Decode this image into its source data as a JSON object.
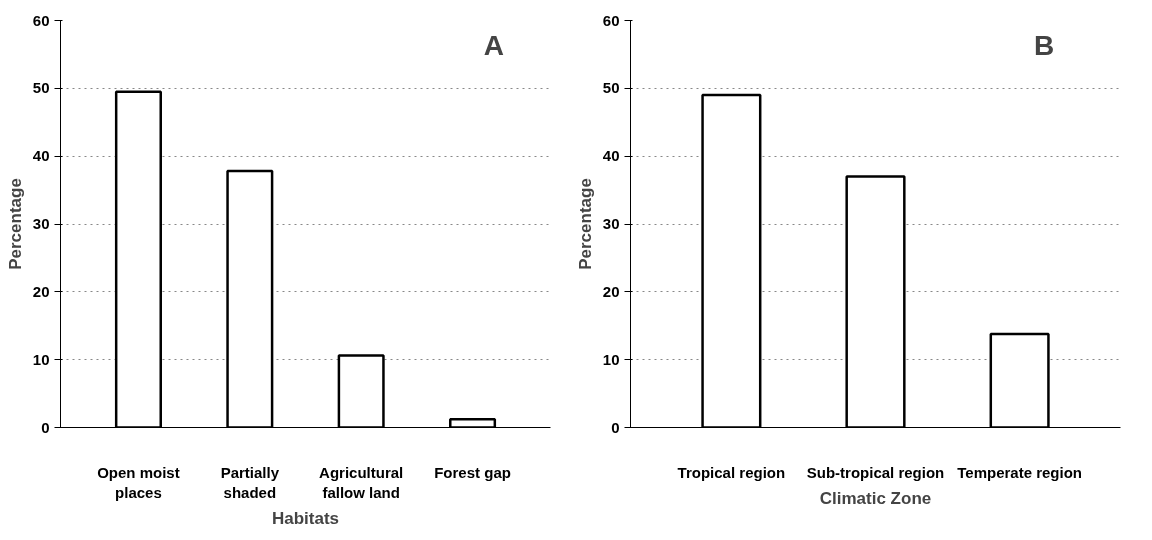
{
  "chart_data": [
    {
      "type": "bar",
      "annotations": [
        "A"
      ],
      "xlabel": "Habitats",
      "ylabel": "Percentage",
      "categories": [
        "Open moist places",
        "Partially shaded",
        "Agricultural fallow land",
        "Forest gap"
      ],
      "values": [
        49.5,
        37.8,
        10.6,
        1.2
      ],
      "color": "#ffffff",
      "ylim": [
        0,
        60
      ],
      "yticks": [
        0,
        10,
        20,
        30,
        40,
        50,
        60
      ],
      "grid": "y"
    },
    {
      "type": "bar",
      "annotations": [
        "B"
      ],
      "xlabel": "Climatic Zone",
      "ylabel": "Percentage",
      "categories": [
        "Tropical region",
        "Sub-tropical region",
        "Temperate region"
      ],
      "values": [
        49.0,
        37.0,
        13.8
      ],
      "color": "#ffffff",
      "ylim": [
        0,
        60
      ],
      "yticks": [
        0,
        10,
        20,
        30,
        40,
        50,
        60
      ],
      "grid": "y"
    }
  ]
}
